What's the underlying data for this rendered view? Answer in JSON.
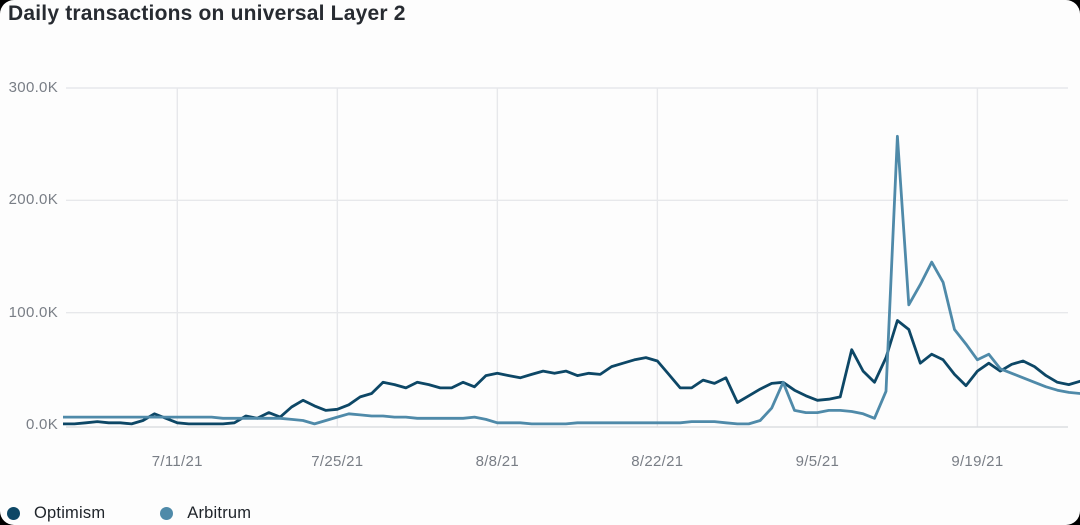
{
  "window": {
    "outer_background": "#000000",
    "card_background": "#fdfdfd"
  },
  "header": {
    "title": "Daily transactions on universal Layer 2"
  },
  "legend": {
    "position": "bottom-left",
    "items": [
      {
        "label": "Optimism",
        "color": "#0d4766"
      },
      {
        "label": "Arbitrum",
        "color": "#4f8aa9"
      }
    ]
  },
  "chart_data": {
    "type": "line",
    "title": "Daily transactions on universal Layer 2",
    "unit": "thousands of transactions per day",
    "grid": true,
    "legend_position": "bottom-left",
    "ylim_k": [
      0,
      300
    ],
    "y_ticks": [
      {
        "label": "0.0K",
        "value_k": 0
      },
      {
        "label": "100.0K",
        "value_k": 100
      },
      {
        "label": "200.0K",
        "value_k": 200
      },
      {
        "label": "300.0K",
        "value_k": 300
      }
    ],
    "num_points": 90,
    "x_ticks": [
      {
        "label": "7/11/21",
        "day_index": 10
      },
      {
        "label": "7/25/21",
        "day_index": 24
      },
      {
        "label": "8/8/21",
        "day_index": 38
      },
      {
        "label": "8/22/21",
        "day_index": 52
      },
      {
        "label": "9/5/21",
        "day_index": 66
      },
      {
        "label": "9/19/21",
        "day_index": 80
      }
    ],
    "series": [
      {
        "name": "Optimism",
        "color": "#0d4766",
        "values_k": [
          1,
          1,
          2,
          3,
          2,
          2,
          1,
          4,
          10,
          6,
          2,
          1,
          1,
          1,
          1,
          2,
          8,
          6,
          11,
          7,
          16,
          22,
          17,
          13,
          14,
          18,
          25,
          28,
          38,
          36,
          33,
          38,
          36,
          33,
          33,
          38,
          34,
          44,
          46,
          44,
          42,
          45,
          48,
          46,
          48,
          44,
          46,
          45,
          52,
          55,
          58,
          60,
          57,
          45,
          33,
          33,
          40,
          37,
          42,
          20,
          26,
          32,
          37,
          38,
          31,
          26,
          22,
          23,
          25,
          67,
          48,
          38,
          60,
          93,
          85,
          55,
          63,
          58,
          45,
          35,
          48,
          55,
          48,
          54,
          57,
          52,
          44,
          38,
          36,
          39
        ]
      },
      {
        "name": "Arbitrum",
        "color": "#4f8aa9",
        "values_k": [
          7,
          7,
          7,
          7,
          7,
          7,
          7,
          7,
          7,
          7,
          7,
          7,
          7,
          7,
          6,
          6,
          6,
          6,
          6,
          6,
          5,
          4,
          1,
          4,
          7,
          10,
          9,
          8,
          8,
          7,
          7,
          6,
          6,
          6,
          6,
          6,
          7,
          5,
          2,
          2,
          2,
          1,
          1,
          1,
          1,
          2,
          2,
          2,
          2,
          2,
          2,
          2,
          2,
          2,
          2,
          3,
          3,
          3,
          2,
          1,
          1,
          4,
          15,
          38,
          13,
          11,
          11,
          13,
          13,
          12,
          10,
          6,
          30,
          257,
          107,
          125,
          145,
          127,
          85,
          72,
          58,
          63,
          50,
          46,
          42,
          38,
          34,
          31,
          29,
          28
        ]
      }
    ],
    "colors": {
      "grid": "#e7e8eb",
      "axis_line": "#dcdee1",
      "tick_text": "#797e86"
    }
  }
}
